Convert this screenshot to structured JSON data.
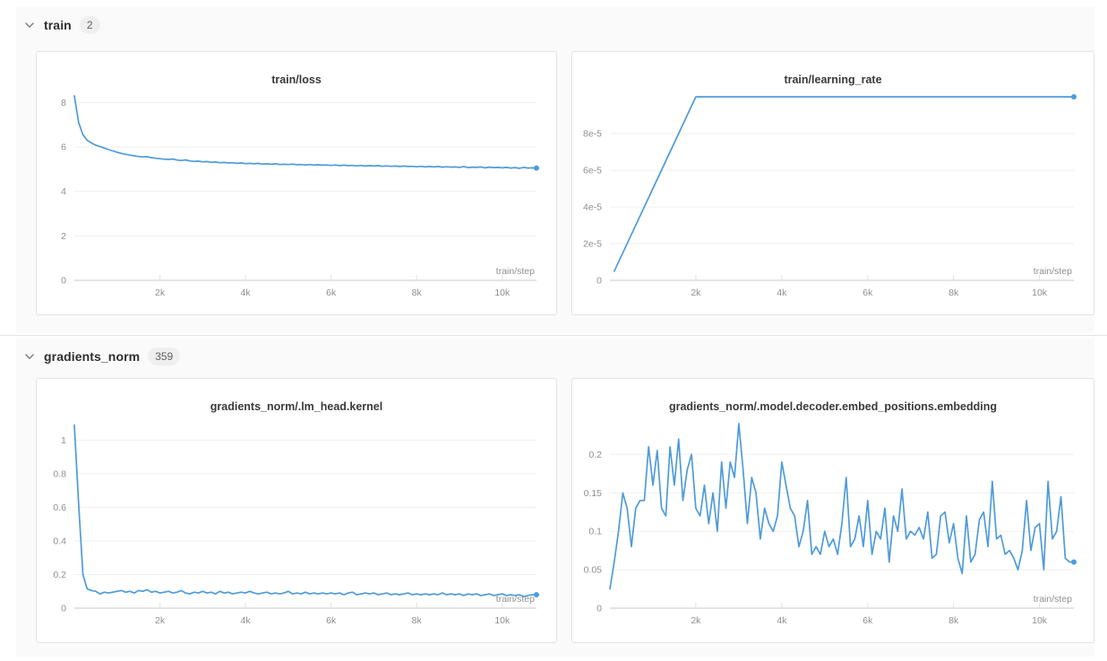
{
  "line_color": "#4f9bd9",
  "axis_label_color": "#8f8f8f",
  "grid_color": "#efefef",
  "axis_color": "#c8c8c8",
  "section_bg": "#fafafa",
  "sections": [
    {
      "label": "train",
      "count": "2",
      "collapse_icon": "chevron-down",
      "charts": [
        {
          "type": "line",
          "title": "train/loss",
          "xlabel": "train/step",
          "xlim": [
            0,
            10800
          ],
          "ylim": [
            0,
            8.5
          ],
          "x_ticks": {
            "values": [
              2000,
              4000,
              6000,
              8000,
              10000
            ],
            "labels": [
              "2k",
              "4k",
              "6k",
              "8k",
              "10k"
            ]
          },
          "y_ticks": {
            "values": [
              0,
              2,
              4,
              6,
              8
            ],
            "labels": [
              "0",
              "2",
              "4",
              "6",
              "8"
            ]
          },
          "x_start": 0,
          "x_step": 100,
          "end_marker": true,
          "values": [
            8.3,
            7.1,
            6.55,
            6.3,
            6.18,
            6.08,
            6.02,
            5.95,
            5.88,
            5.82,
            5.76,
            5.71,
            5.67,
            5.63,
            5.6,
            5.57,
            5.55,
            5.56,
            5.52,
            5.49,
            5.47,
            5.45,
            5.44,
            5.46,
            5.41,
            5.39,
            5.42,
            5.37,
            5.35,
            5.36,
            5.33,
            5.34,
            5.31,
            5.32,
            5.29,
            5.3,
            5.28,
            5.29,
            5.26,
            5.28,
            5.25,
            5.26,
            5.24,
            5.26,
            5.23,
            5.24,
            5.22,
            5.24,
            5.21,
            5.22,
            5.21,
            5.23,
            5.2,
            5.21,
            5.19,
            5.21,
            5.18,
            5.2,
            5.18,
            5.19,
            5.17,
            5.19,
            5.16,
            5.18,
            5.16,
            5.17,
            5.15,
            5.17,
            5.14,
            5.16,
            5.14,
            5.16,
            5.13,
            5.15,
            5.13,
            5.14,
            5.12,
            5.14,
            5.12,
            5.13,
            5.11,
            5.13,
            5.1,
            5.12,
            5.1,
            5.12,
            5.09,
            5.11,
            5.09,
            5.1,
            5.08,
            5.12,
            5.07,
            5.09,
            5.08,
            5.1,
            5.06,
            5.09,
            5.07,
            5.08,
            5.06,
            5.08,
            5.05,
            5.07,
            5.04,
            5.08,
            5.05,
            5.06,
            5.05
          ]
        },
        {
          "type": "line",
          "title": "train/learning_rate",
          "xlabel": "train/step",
          "xlim": [
            0,
            10800
          ],
          "ylim": [
            0,
            0.000103
          ],
          "x_ticks": {
            "values": [
              2000,
              4000,
              6000,
              8000,
              10000
            ],
            "labels": [
              "2k",
              "4k",
              "6k",
              "8k",
              "10k"
            ]
          },
          "y_ticks": {
            "values": [
              0,
              2e-05,
              4e-05,
              6e-05,
              8e-05
            ],
            "labels": [
              "0",
              "2e-5",
              "4e-5",
              "6e-5",
              "8e-5"
            ]
          },
          "end_marker": true,
          "points": [
            [
              100,
              5e-06
            ],
            [
              2000,
              0.0001
            ],
            [
              10800,
              0.0001
            ]
          ]
        }
      ]
    },
    {
      "label": "gradients_norm",
      "count": "359",
      "collapse_icon": "chevron-down",
      "charts": [
        {
          "type": "line",
          "title": "gradients_norm/.lm_head.kernel",
          "xlabel": "train/step",
          "xlim": [
            0,
            10800
          ],
          "ylim": [
            0,
            1.13
          ],
          "x_ticks": {
            "values": [
              2000,
              4000,
              6000,
              8000,
              10000
            ],
            "labels": [
              "2k",
              "4k",
              "6k",
              "8k",
              "10k"
            ]
          },
          "y_ticks": {
            "values": [
              0,
              0.2,
              0.4,
              0.6,
              0.8,
              1
            ],
            "labels": [
              "0",
              "0.2",
              "0.4",
              "0.6",
              "0.8",
              "1"
            ]
          },
          "x_start": 0,
          "x_step": 100,
          "end_marker": true,
          "values": [
            1.09,
            0.62,
            0.2,
            0.115,
            0.105,
            0.1,
            0.085,
            0.095,
            0.09,
            0.095,
            0.1,
            0.105,
            0.095,
            0.1,
            0.09,
            0.105,
            0.1,
            0.11,
            0.095,
            0.1,
            0.09,
            0.095,
            0.1,
            0.09,
            0.095,
            0.105,
            0.09,
            0.085,
            0.095,
            0.09,
            0.1,
            0.09,
            0.095,
            0.085,
            0.1,
            0.09,
            0.095,
            0.085,
            0.09,
            0.095,
            0.09,
            0.1,
            0.09,
            0.085,
            0.09,
            0.095,
            0.085,
            0.09,
            0.085,
            0.09,
            0.1,
            0.085,
            0.09,
            0.085,
            0.095,
            0.085,
            0.09,
            0.085,
            0.09,
            0.085,
            0.09,
            0.085,
            0.09,
            0.08,
            0.09,
            0.095,
            0.08,
            0.085,
            0.09,
            0.085,
            0.09,
            0.08,
            0.085,
            0.09,
            0.08,
            0.085,
            0.08,
            0.085,
            0.09,
            0.08,
            0.085,
            0.08,
            0.085,
            0.08,
            0.085,
            0.08,
            0.09,
            0.08,
            0.085,
            0.08,
            0.085,
            0.075,
            0.085,
            0.08,
            0.085,
            0.075,
            0.08,
            0.085,
            0.075,
            0.08,
            0.085,
            0.075,
            0.08,
            0.075,
            0.08,
            0.07,
            0.075,
            0.08,
            0.08
          ]
        },
        {
          "type": "line",
          "title": "gradients_norm/.model.decoder.embed_positions.embedding",
          "xlabel": "train/step",
          "xlim": [
            0,
            10800
          ],
          "ylim": [
            0,
            0.247
          ],
          "x_ticks": {
            "values": [
              2000,
              4000,
              6000,
              8000,
              10000
            ],
            "labels": [
              "2k",
              "4k",
              "6k",
              "8k",
              "10k"
            ]
          },
          "y_ticks": {
            "values": [
              0,
              0.05,
              0.1,
              0.15,
              0.2
            ],
            "labels": [
              "0",
              "0.05",
              "0.1",
              "0.15",
              "0.2"
            ]
          },
          "x_start": 0,
          "x_step": 100,
          "end_marker": true,
          "values": [
            0.025,
            0.06,
            0.1,
            0.15,
            0.13,
            0.08,
            0.13,
            0.14,
            0.14,
            0.21,
            0.16,
            0.205,
            0.13,
            0.12,
            0.21,
            0.16,
            0.22,
            0.14,
            0.18,
            0.2,
            0.13,
            0.12,
            0.16,
            0.11,
            0.15,
            0.1,
            0.19,
            0.13,
            0.19,
            0.17,
            0.24,
            0.18,
            0.11,
            0.17,
            0.15,
            0.09,
            0.13,
            0.11,
            0.1,
            0.12,
            0.19,
            0.16,
            0.13,
            0.12,
            0.08,
            0.1,
            0.14,
            0.07,
            0.08,
            0.07,
            0.1,
            0.08,
            0.09,
            0.07,
            0.11,
            0.17,
            0.08,
            0.09,
            0.12,
            0.08,
            0.14,
            0.07,
            0.1,
            0.09,
            0.13,
            0.06,
            0.12,
            0.1,
            0.155,
            0.09,
            0.1,
            0.095,
            0.105,
            0.09,
            0.125,
            0.065,
            0.07,
            0.12,
            0.125,
            0.085,
            0.11,
            0.065,
            0.045,
            0.12,
            0.06,
            0.07,
            0.115,
            0.125,
            0.08,
            0.165,
            0.09,
            0.095,
            0.07,
            0.075,
            0.065,
            0.05,
            0.075,
            0.14,
            0.075,
            0.105,
            0.11,
            0.05,
            0.165,
            0.09,
            0.1,
            0.145,
            0.065,
            0.06,
            0.06
          ]
        }
      ]
    }
  ]
}
